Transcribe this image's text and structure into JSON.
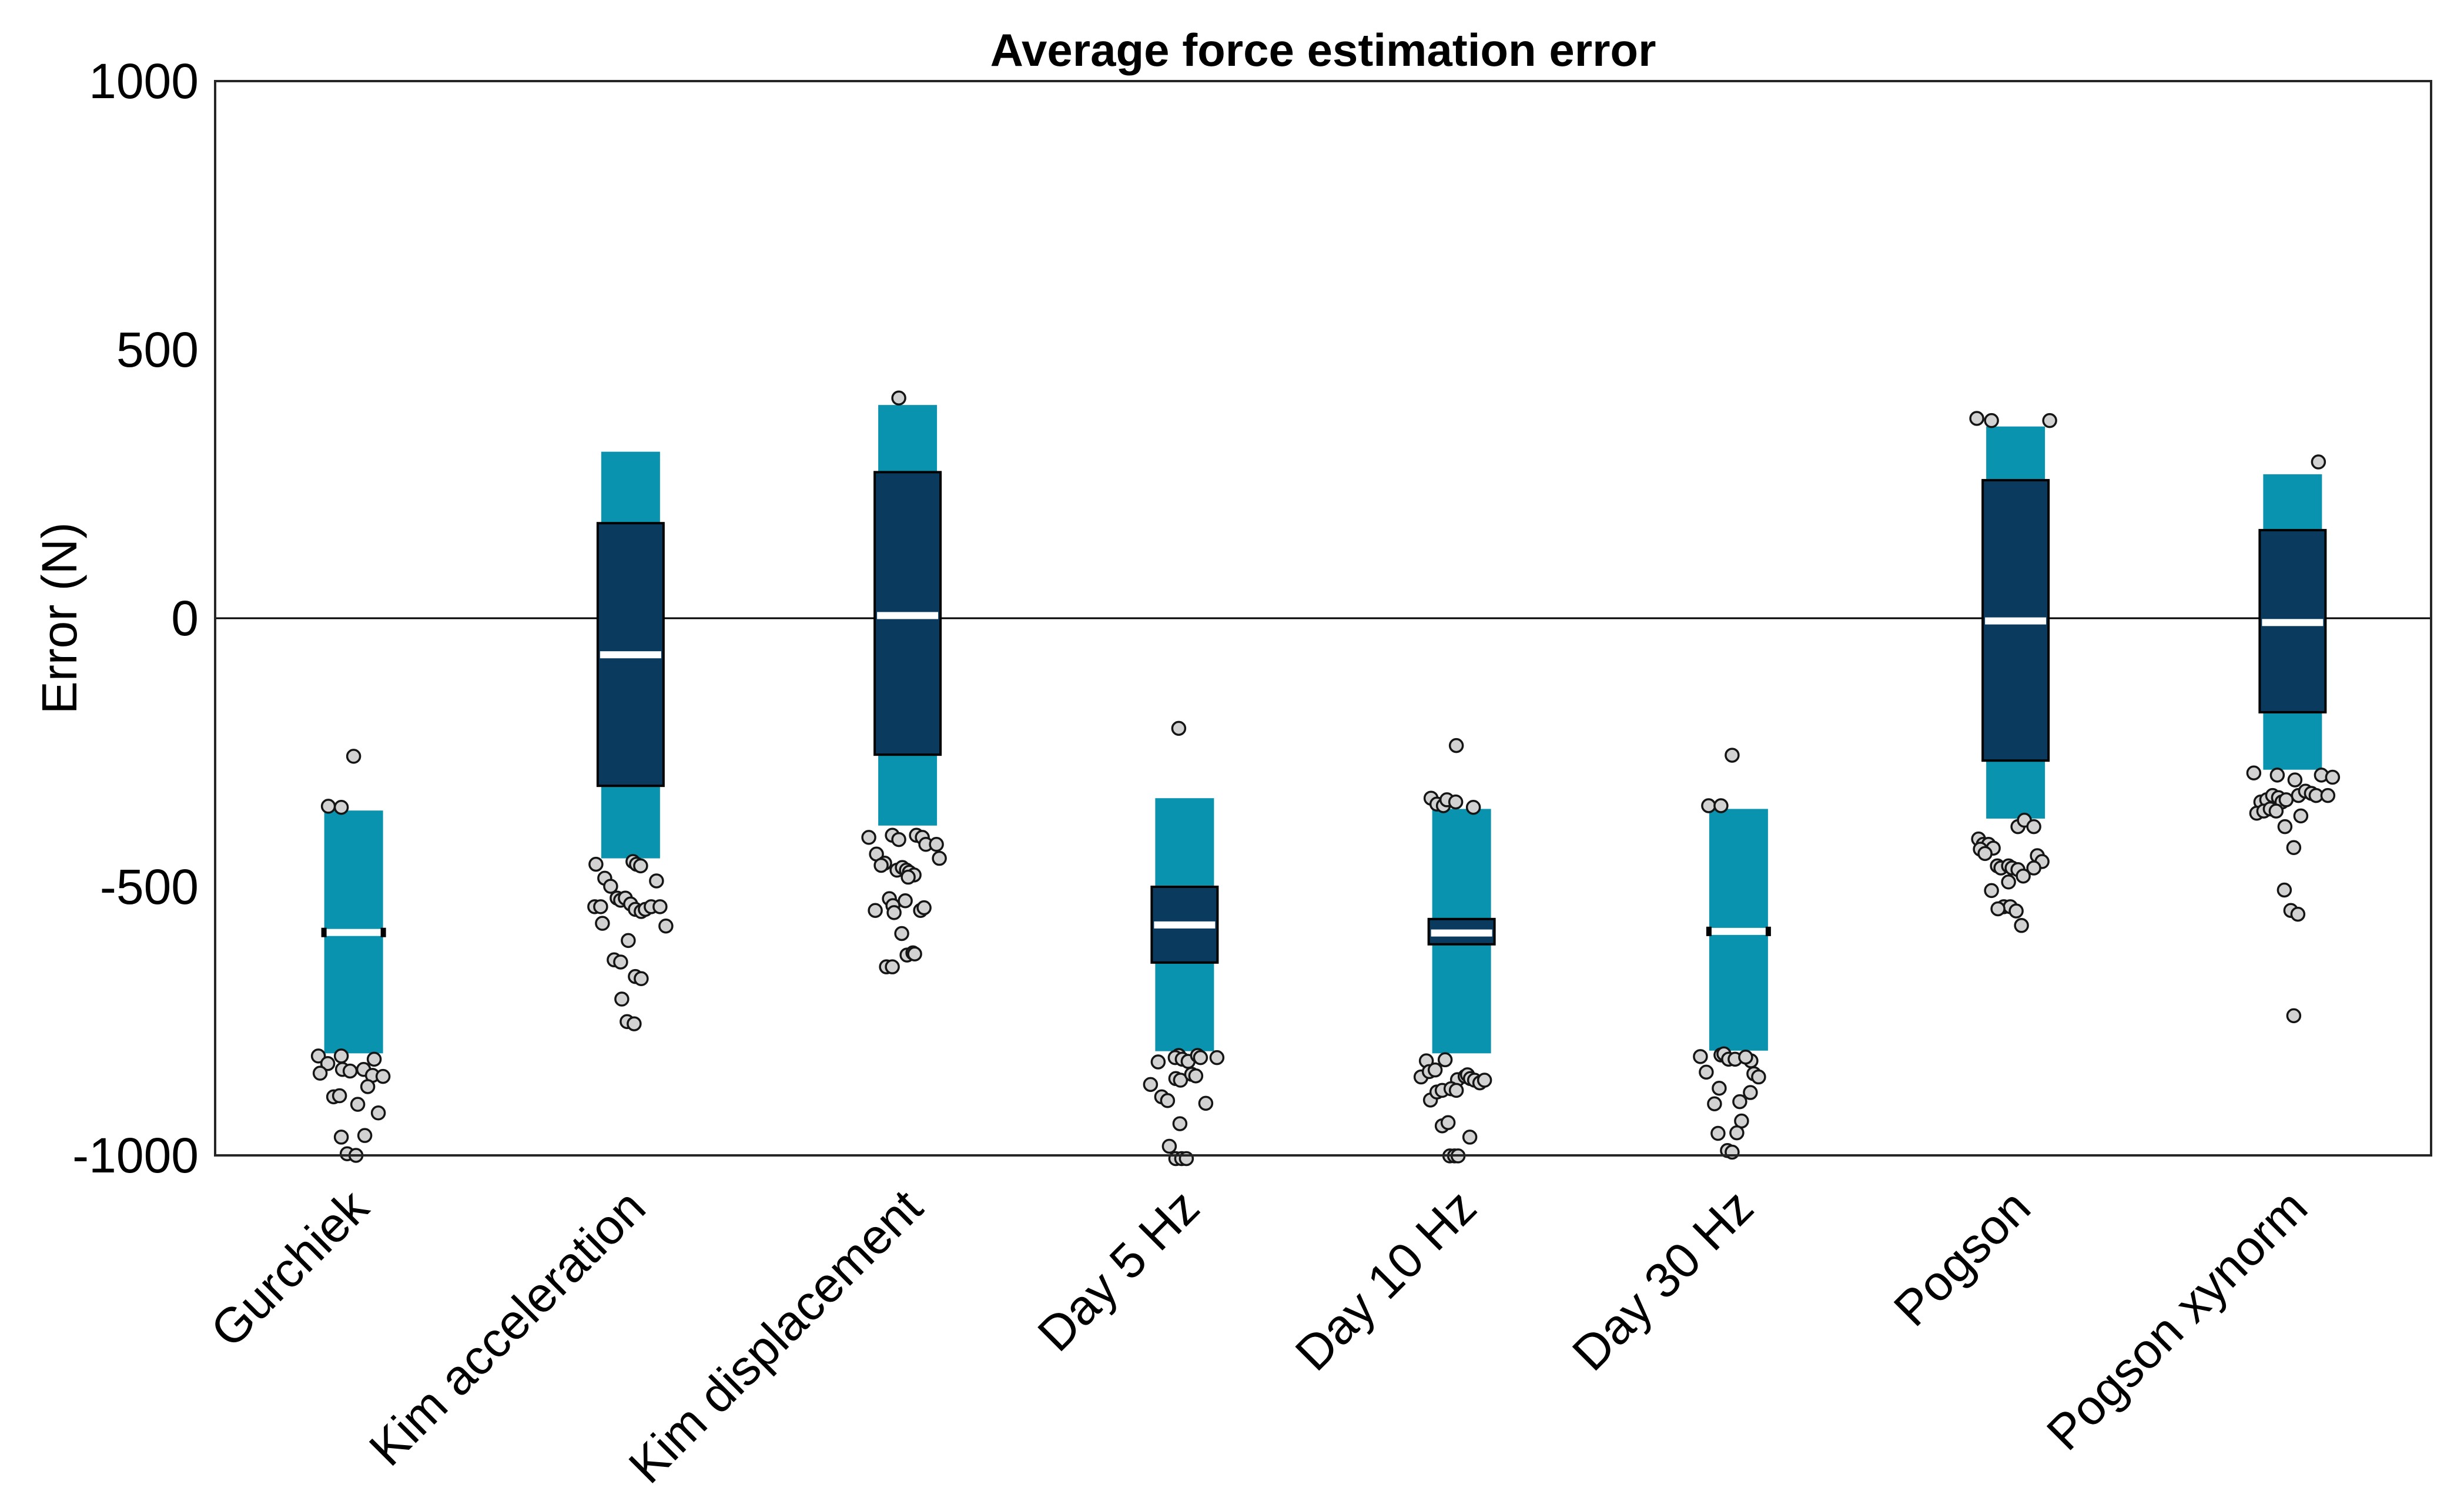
{
  "title": "Average force estimation error",
  "chart_data": {
    "type": "box",
    "title": "Average force estimation error",
    "xlabel": "",
    "ylabel": "Error (N)",
    "ylim": [
      -1000,
      1000
    ],
    "yticks": [
      1000,
      500,
      0,
      -500,
      -1000
    ],
    "grid": false,
    "zero_line": 0,
    "legend": "none",
    "colors": {
      "range_band": "#0a93ae",
      "iqr_box": "#0a3a5e",
      "box_border": "#000000",
      "median_line": "#ffffff",
      "point_fill": "#d2d2d2",
      "point_stroke": "#151515",
      "axis": "#262626",
      "background": "#ffffff"
    },
    "categories": [
      "Gurchiek",
      "Kim acceleration",
      "Kim displacement",
      "Day 5 Hz",
      "Day 10 Hz",
      "Day 30 Hz",
      "Pogson",
      "Pogson xynorm"
    ],
    "series": [
      {
        "label": "Gurchiek",
        "range": [
          -810,
          -358
        ],
        "box": null,
        "median": -585,
        "points": [
          [
            0,
            -257
          ],
          [
            -43,
            -350
          ],
          [
            -21,
            -352
          ],
          [
            -60,
            -815
          ],
          [
            -21,
            -815
          ],
          [
            -44,
            -829
          ],
          [
            35,
            -821
          ],
          [
            -57,
            -847
          ],
          [
            -19,
            -840
          ],
          [
            -6,
            -843
          ],
          [
            17,
            -840
          ],
          [
            32,
            -851
          ],
          [
            50,
            -853
          ],
          [
            24,
            -872
          ],
          [
            -34,
            -891
          ],
          [
            -24,
            -889
          ],
          [
            7,
            -905
          ],
          [
            42,
            -921
          ],
          [
            -21,
            -966
          ],
          [
            -11,
            -997
          ],
          [
            4,
            -1000
          ],
          [
            19,
            -963
          ]
        ]
      },
      {
        "label": "Kim acceleration",
        "range": [
          -447,
          310
        ],
        "box": [
          -312,
          177
        ],
        "median": -68,
        "points": [
          [
            -59,
            -458
          ],
          [
            -44,
            -484
          ],
          [
            -34,
            -499
          ],
          [
            4,
            -453
          ],
          [
            10,
            -458
          ],
          [
            17,
            -461
          ],
          [
            44,
            -489
          ],
          [
            -61,
            -537
          ],
          [
            -51,
            -537
          ],
          [
            -23,
            -521
          ],
          [
            -17,
            -525
          ],
          [
            -9,
            -521
          ],
          [
            0,
            -532
          ],
          [
            8,
            -542
          ],
          [
            18,
            -546
          ],
          [
            25,
            -542
          ],
          [
            35,
            -537
          ],
          [
            50,
            -537
          ],
          [
            -48,
            -568
          ],
          [
            60,
            -573
          ],
          [
            -4,
            -600
          ],
          [
            -28,
            -636
          ],
          [
            -17,
            -640
          ],
          [
            8,
            -667
          ],
          [
            18,
            -671
          ],
          [
            -15,
            -709
          ],
          [
            -6,
            -751
          ],
          [
            6,
            -755
          ]
        ]
      },
      {
        "label": "Kim displacement",
        "range": [
          -386,
          397
        ],
        "box": [
          -254,
          272
        ],
        "median": 5,
        "points": [
          [
            -15,
            410
          ],
          [
            -66,
            -408
          ],
          [
            -26,
            -404
          ],
          [
            -15,
            -412
          ],
          [
            15,
            -404
          ],
          [
            25,
            -408
          ],
          [
            31,
            -421
          ],
          [
            49,
            -421
          ],
          [
            54,
            -447
          ],
          [
            -53,
            -439
          ],
          [
            -39,
            -456
          ],
          [
            -45,
            -460
          ],
          [
            -18,
            -469
          ],
          [
            -9,
            -464
          ],
          [
            -2,
            -469
          ],
          [
            3,
            -473
          ],
          [
            11,
            -478
          ],
          [
            1,
            -482
          ],
          [
            -55,
            -544
          ],
          [
            -31,
            -522
          ],
          [
            -25,
            -535
          ],
          [
            -4,
            -526
          ],
          [
            22,
            -544
          ],
          [
            28,
            -539
          ],
          [
            -23,
            -548
          ],
          [
            -10,
            -587
          ],
          [
            -1,
            -627
          ],
          [
            9,
            -623
          ],
          [
            -36,
            -649
          ],
          [
            -26,
            -649
          ],
          [
            12,
            -625
          ]
        ]
      },
      {
        "label": "Day 5 Hz",
        "range": [
          -806,
          -335
        ],
        "box": [
          -641,
          -500
        ],
        "median": -571,
        "points": [
          [
            -10,
            -205
          ],
          [
            -45,
            -826
          ],
          [
            -10,
            -814
          ],
          [
            -16,
            -818
          ],
          [
            -4,
            -821
          ],
          [
            6,
            -825
          ],
          [
            22,
            -814
          ],
          [
            27,
            -818
          ],
          [
            55,
            -818
          ],
          [
            -58,
            -868
          ],
          [
            -15,
            -857
          ],
          [
            -7,
            -860
          ],
          [
            12,
            -849
          ],
          [
            19,
            -852
          ],
          [
            -39,
            -891
          ],
          [
            -29,
            -898
          ],
          [
            36,
            -903
          ],
          [
            -8,
            -941
          ],
          [
            -26,
            -983
          ],
          [
            -15,
            -1006
          ],
          [
            -5,
            -1006
          ],
          [
            3,
            -1006
          ]
        ]
      },
      {
        "label": "Day 10 Hz",
        "range": [
          -810,
          -355
        ],
        "box": [
          -607,
          -560
        ],
        "median": -586,
        "points": [
          [
            -9,
            -237
          ],
          [
            -52,
            -335
          ],
          [
            -42,
            -346
          ],
          [
            -31,
            -349
          ],
          [
            -25,
            -338
          ],
          [
            -10,
            -342
          ],
          [
            20,
            -352
          ],
          [
            -60,
            -824
          ],
          [
            -28,
            -822
          ],
          [
            -69,
            -854
          ],
          [
            -55,
            -844
          ],
          [
            -45,
            -841
          ],
          [
            -7,
            -859
          ],
          [
            6,
            -853
          ],
          [
            10,
            -850
          ],
          [
            15,
            -857
          ],
          [
            22,
            -860
          ],
          [
            31,
            -865
          ],
          [
            39,
            -860
          ],
          [
            -53,
            -897
          ],
          [
            -42,
            -882
          ],
          [
            -33,
            -879
          ],
          [
            -18,
            -876
          ],
          [
            -9,
            -879
          ],
          [
            -33,
            -945
          ],
          [
            -23,
            -939
          ],
          [
            14,
            -966
          ],
          [
            -20,
            -1001
          ],
          [
            -12,
            -1001
          ],
          [
            -6,
            -1001
          ]
        ]
      },
      {
        "label": "Day 30 Hz",
        "range": [
          -805,
          -355
        ],
        "box": null,
        "median": -583,
        "points": [
          [
            -11,
            -255
          ],
          [
            -51,
            -349
          ],
          [
            -30,
            -349
          ],
          [
            -65,
            -816
          ],
          [
            -30,
            -813
          ],
          [
            21,
            -824
          ],
          [
            -55,
            -845
          ],
          [
            -25,
            -811
          ],
          [
            -17,
            -821
          ],
          [
            -6,
            -821
          ],
          [
            12,
            -817
          ],
          [
            26,
            -848
          ],
          [
            34,
            -854
          ],
          [
            20,
            -883
          ],
          [
            2,
            -900
          ],
          [
            -41,
            -904
          ],
          [
            -33,
            -875
          ],
          [
            5,
            -936
          ],
          [
            -35,
            -959
          ],
          [
            -19,
            -991
          ],
          [
            -11,
            -994
          ],
          [
            -3,
            -958
          ]
        ]
      },
      {
        "label": "Pogson",
        "range": [
          -373,
          357
        ],
        "box": [
          -265,
          257
        ],
        "median": -5,
        "points": [
          [
            -66,
            372
          ],
          [
            -41,
            368
          ],
          [
            58,
            368
          ],
          [
            4,
            -388
          ],
          [
            15,
            -376
          ],
          [
            31,
            -388
          ],
          [
            -63,
            -411
          ],
          [
            -55,
            -421
          ],
          [
            -46,
            -421
          ],
          [
            -38,
            -428
          ],
          [
            -60,
            -430
          ],
          [
            -52,
            -438
          ],
          [
            37,
            -442
          ],
          [
            45,
            -453
          ],
          [
            31,
            -465
          ],
          [
            -31,
            -461
          ],
          [
            -25,
            -465
          ],
          [
            -12,
            -461
          ],
          [
            -6,
            -465
          ],
          [
            4,
            -468
          ],
          [
            13,
            -480
          ],
          [
            -12,
            -491
          ],
          [
            -41,
            -507
          ],
          [
            -20,
            -537
          ],
          [
            -9,
            -537
          ],
          [
            1,
            -545
          ],
          [
            -30,
            -541
          ],
          [
            10,
            -572
          ]
        ]
      },
      {
        "label": "Pogson xynorm",
        "range": [
          -282,
          268
        ],
        "box": [
          -175,
          164
        ],
        "median": -8,
        "points": [
          [
            44,
            291
          ],
          [
            -66,
            -288
          ],
          [
            -26,
            -292
          ],
          [
            4,
            -301
          ],
          [
            49,
            -292
          ],
          [
            68,
            -296
          ],
          [
            10,
            -330
          ],
          [
            22,
            -322
          ],
          [
            32,
            -326
          ],
          [
            40,
            -330
          ],
          [
            60,
            -330
          ],
          [
            -54,
            -342
          ],
          [
            -44,
            -338
          ],
          [
            -34,
            -330
          ],
          [
            -24,
            -334
          ],
          [
            -18,
            -342
          ],
          [
            -11,
            -338
          ],
          [
            -61,
            -363
          ],
          [
            -49,
            -359
          ],
          [
            -38,
            -355
          ],
          [
            -28,
            -359
          ],
          [
            14,
            -368
          ],
          [
            -13,
            -388
          ],
          [
            2,
            -427
          ],
          [
            -14,
            -506
          ],
          [
            -3,
            -544
          ],
          [
            9,
            -551
          ],
          [
            2,
            -740
          ]
        ]
      }
    ]
  }
}
